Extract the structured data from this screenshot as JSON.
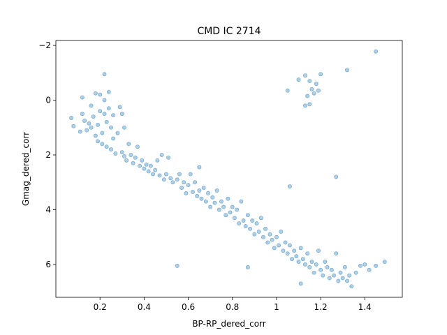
{
  "chart_data": {
    "type": "scatter",
    "title": "CMD IC 2714",
    "x_label": "BP-RP_dered_corr",
    "y_label": "Gmag_dered_corr",
    "color": "#1f77b4",
    "inverted_y": true,
    "xlim": [
      0.0,
      1.57
    ],
    "ylim": [
      7.2,
      -2.18
    ],
    "xticks": [
      0.2,
      0.4,
      0.6,
      0.8,
      1.0,
      1.2,
      1.4
    ],
    "yticks": [
      {
        "value": -2,
        "label": "−2"
      },
      0,
      2,
      4,
      6
    ],
    "x": [
      0.07,
      0.08,
      0.11,
      0.12,
      0.12,
      0.13,
      0.14,
      0.15,
      0.16,
      0.16,
      0.17,
      0.18,
      0.18,
      0.19,
      0.19,
      0.2,
      0.2,
      0.21,
      0.21,
      0.22,
      0.22,
      0.22,
      0.23,
      0.23,
      0.24,
      0.24,
      0.25,
      0.25,
      0.26,
      0.26,
      0.27,
      0.28,
      0.29,
      0.3,
      0.3,
      0.31,
      0.31,
      0.32,
      0.33,
      0.34,
      0.35,
      0.36,
      0.37,
      0.38,
      0.39,
      0.4,
      0.41,
      0.42,
      0.43,
      0.44,
      0.45,
      0.46,
      0.47,
      0.48,
      0.49,
      0.5,
      0.51,
      0.52,
      0.53,
      0.55,
      0.56,
      0.57,
      0.58,
      0.59,
      0.6,
      0.61,
      0.62,
      0.63,
      0.64,
      0.65,
      0.65,
      0.66,
      0.67,
      0.68,
      0.69,
      0.7,
      0.71,
      0.72,
      0.73,
      0.74,
      0.75,
      0.76,
      0.77,
      0.78,
      0.79,
      0.8,
      0.81,
      0.82,
      0.83,
      0.84,
      0.85,
      0.86,
      0.87,
      0.88,
      0.89,
      0.9,
      0.91,
      0.92,
      0.93,
      0.94,
      0.95,
      0.96,
      0.97,
      0.98,
      0.99,
      1.0,
      1.01,
      1.02,
      1.03,
      1.04,
      1.05,
      1.06,
      1.07,
      1.08,
      1.09,
      1.1,
      1.11,
      1.12,
      1.13,
      1.14,
      1.15,
      1.16,
      1.17,
      1.18,
      1.19,
      1.2,
      1.21,
      1.22,
      1.23,
      1.24,
      1.25,
      1.26,
      1.27,
      1.28,
      1.29,
      1.3,
      1.31,
      1.32,
      1.33,
      1.34,
      1.36,
      1.38,
      1.4,
      1.42,
      1.45,
      1.49,
      1.11,
      1.06,
      1.27,
      0.55,
      0.87,
      1.05,
      1.1,
      1.13,
      1.15,
      1.16,
      1.17,
      1.18,
      1.2,
      1.14,
      1.15,
      1.13,
      1.19,
      1.32,
      1.45
    ],
    "y": [
      0.65,
      0.95,
      1.15,
      0.5,
      -0.1,
      0.75,
      1.1,
      0.85,
      0.2,
      1.0,
      0.6,
      -0.25,
      1.3,
      1.5,
      0.9,
      -0.2,
      0.4,
      1.2,
      1.6,
      0.0,
      0.5,
      -0.95,
      0.8,
      1.7,
      -0.3,
      0.3,
      1.0,
      1.8,
      0.55,
      1.4,
      1.95,
      1.2,
      0.25,
      0.5,
      1.9,
      2.05,
      1.0,
      2.2,
      1.6,
      2.0,
      2.3,
      2.1,
      1.7,
      2.4,
      2.2,
      2.5,
      2.35,
      2.6,
      2.4,
      2.7,
      2.55,
      2.2,
      2.75,
      2.0,
      2.9,
      2.7,
      2.1,
      2.85,
      3.0,
      2.9,
      2.7,
      3.2,
      3.0,
      3.4,
      3.1,
      2.7,
      3.35,
      3.0,
      3.5,
      2.45,
      3.3,
      3.6,
      3.2,
      3.7,
      3.4,
      3.9,
      3.55,
      3.75,
      3.3,
      4.0,
      3.7,
      3.9,
      4.2,
      3.6,
      4.1,
      3.9,
      4.3,
      4.0,
      4.5,
      3.7,
      4.4,
      4.6,
      4.2,
      4.7,
      4.4,
      4.9,
      4.5,
      4.8,
      4.3,
      5.0,
      4.7,
      5.2,
      4.9,
      5.1,
      5.4,
      5.0,
      5.3,
      4.8,
      5.5,
      5.2,
      5.6,
      5.3,
      5.8,
      5.5,
      5.7,
      5.9,
      5.4,
      5.8,
      6.0,
      5.6,
      6.1,
      5.9,
      6.3,
      6.0,
      5.5,
      6.2,
      6.4,
      5.9,
      6.1,
      6.5,
      6.2,
      6.4,
      5.6,
      6.6,
      6.3,
      6.5,
      6.1,
      6.6,
      6.4,
      6.8,
      6.3,
      6.05,
      6.0,
      6.2,
      6.05,
      5.9,
      6.7,
      3.15,
      2.8,
      6.05,
      6.1,
      -0.35,
      -0.75,
      -0.9,
      -0.7,
      -0.4,
      -0.25,
      -0.6,
      -0.95,
      -0.15,
      0.15,
      0.2,
      -0.35,
      -1.1,
      -1.78
    ]
  }
}
